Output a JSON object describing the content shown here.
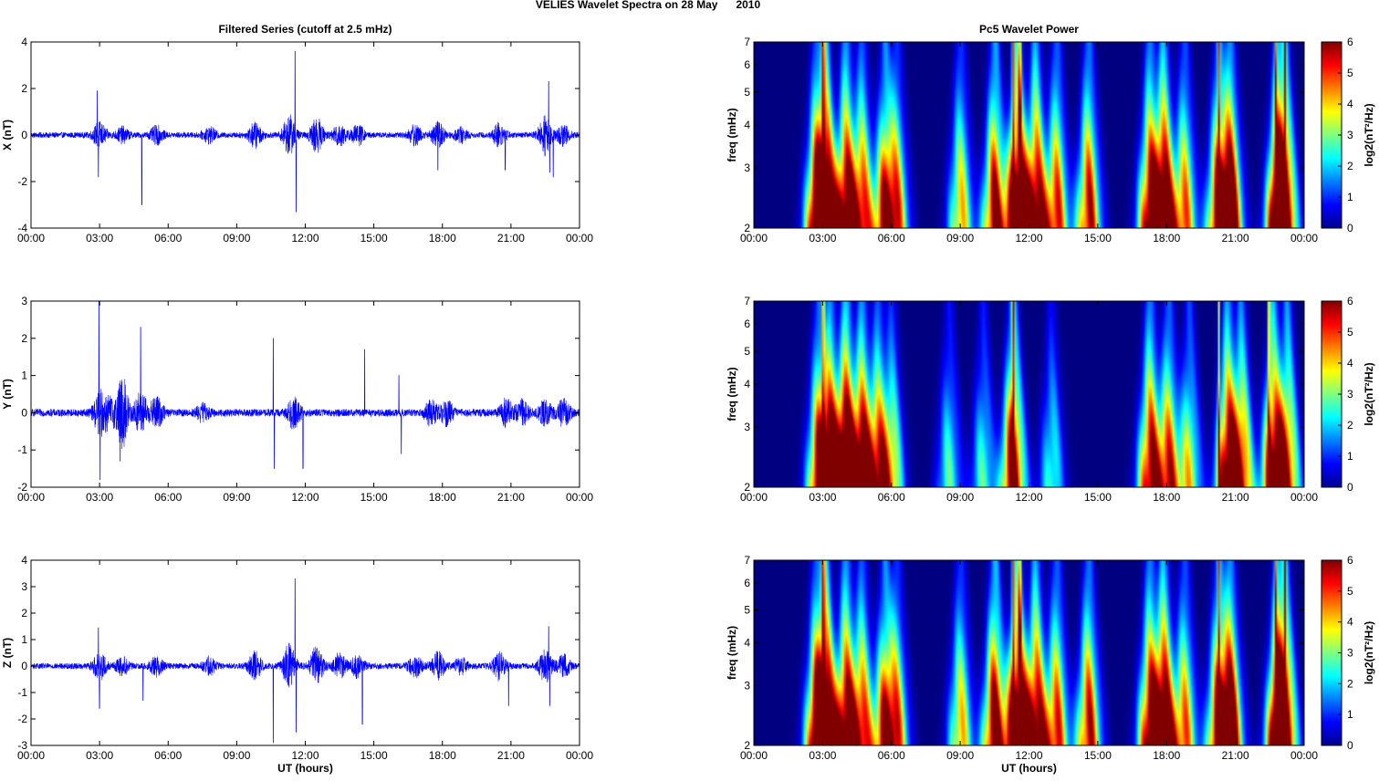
{
  "suptitle": "VELIES Wavelet Spectra on 28 May      2010",
  "time_ticks": [
    "00:00",
    "03:00",
    "06:00",
    "09:00",
    "12:00",
    "15:00",
    "18:00",
    "21:00",
    "00:00"
  ],
  "colors": {
    "series_line": "#0000ff",
    "spectrum_bg": "#00008f"
  },
  "chart_data": [
    {
      "type": "line",
      "title": "Filtered Series (cutoff at 2.5 mHz)",
      "component": "X",
      "xlabel": "",
      "ylabel": "X (nT)",
      "xlim": [
        0,
        24
      ],
      "ylim": [
        -4,
        4
      ],
      "yticks": [
        -4,
        -2,
        0,
        2,
        4
      ],
      "amp": 0.12,
      "bursts": [
        [
          3.0,
          0.5
        ],
        [
          4.0,
          0.3
        ],
        [
          5.5,
          0.35
        ],
        [
          7.8,
          0.3
        ],
        [
          9.8,
          0.5
        ],
        [
          11.3,
          0.8
        ],
        [
          12.5,
          0.7
        ],
        [
          13.5,
          0.45
        ],
        [
          14.3,
          0.4
        ],
        [
          16.8,
          0.4
        ],
        [
          17.8,
          0.5
        ],
        [
          18.8,
          0.3
        ],
        [
          20.5,
          0.5
        ],
        [
          22.5,
          0.8
        ],
        [
          23.3,
          0.4
        ]
      ],
      "spikes": [
        [
          2.9,
          1.9
        ],
        [
          2.95,
          -1.8
        ],
        [
          4.85,
          -3.0
        ],
        [
          11.55,
          3.6
        ],
        [
          11.6,
          -3.3
        ],
        [
          17.8,
          -1.5
        ],
        [
          20.75,
          -1.5
        ],
        [
          22.65,
          2.3
        ],
        [
          22.7,
          -1.6
        ],
        [
          22.85,
          -1.8
        ]
      ]
    },
    {
      "type": "heatmap",
      "title": "Pc5 Wavelet Power",
      "component": "X",
      "xlabel": "",
      "ylabel": "freq (mHz)",
      "xlim": [
        0,
        24
      ],
      "ylim": [
        2,
        7
      ],
      "ytick_values": [
        2,
        3,
        4,
        5,
        6,
        7
      ],
      "colorbar_label": "log2(nT²/Hz)",
      "colorbar_ticks": [
        0,
        1,
        2,
        3,
        4,
        5,
        6
      ],
      "blobs": [
        [
          2.7,
          1.0
        ],
        [
          3.1,
          1.5
        ],
        [
          4.0,
          1.3
        ],
        [
          4.7,
          1.0
        ],
        [
          5.7,
          1.0
        ],
        [
          6.2,
          0.8
        ],
        [
          9.0,
          0.8
        ],
        [
          10.5,
          1.2
        ],
        [
          11.5,
          1.6
        ],
        [
          12.3,
          1.3
        ],
        [
          13.2,
          1.0
        ],
        [
          14.6,
          1.1
        ],
        [
          17.3,
          1.2
        ],
        [
          17.9,
          1.4
        ],
        [
          18.8,
          0.9
        ],
        [
          20.3,
          1.1
        ],
        [
          20.8,
          1.3
        ],
        [
          22.9,
          1.3
        ],
        [
          23.2,
          1.0
        ]
      ],
      "streaks": [
        3.0,
        11.3,
        11.6,
        20.3,
        22.8,
        23.2
      ]
    },
    {
      "type": "line",
      "title": "",
      "component": "Y",
      "xlabel": "",
      "ylabel": "Y (nT)",
      "xlim": [
        0,
        24
      ],
      "ylim": [
        -2,
        3
      ],
      "yticks": [
        -2,
        -1,
        0,
        1,
        2,
        3
      ],
      "amp": 0.1,
      "bursts": [
        [
          3.0,
          0.5
        ],
        [
          3.4,
          0.35
        ],
        [
          4.0,
          0.9
        ],
        [
          4.8,
          0.55
        ],
        [
          5.5,
          0.4
        ],
        [
          7.5,
          0.2
        ],
        [
          11.5,
          0.4
        ],
        [
          17.5,
          0.3
        ],
        [
          18.2,
          0.3
        ],
        [
          20.8,
          0.35
        ],
        [
          21.5,
          0.3
        ],
        [
          22.5,
          0.3
        ],
        [
          23.3,
          0.35
        ]
      ],
      "spikes": [
        [
          2.97,
          3.0
        ],
        [
          3.02,
          -1.8
        ],
        [
          4.8,
          2.3
        ],
        [
          3.9,
          -1.3
        ],
        [
          10.6,
          2.0
        ],
        [
          10.65,
          -1.5
        ],
        [
          11.9,
          -1.5
        ],
        [
          14.6,
          1.7
        ],
        [
          16.1,
          1.0
        ],
        [
          16.2,
          -1.1
        ]
      ]
    },
    {
      "type": "heatmap",
      "title": "",
      "component": "Y",
      "xlabel": "",
      "ylabel": "freq (mHz)",
      "xlim": [
        0,
        24
      ],
      "ylim": [
        2,
        7
      ],
      "ytick_values": [
        2,
        3,
        4,
        5,
        6,
        7
      ],
      "colorbar_label": "log2(nT²/Hz)",
      "colorbar_ticks": [
        0,
        1,
        2,
        3,
        4,
        5,
        6
      ],
      "blobs": [
        [
          2.8,
          1.0
        ],
        [
          3.3,
          1.3
        ],
        [
          4.0,
          1.6
        ],
        [
          4.7,
          1.3
        ],
        [
          5.4,
          1.0
        ],
        [
          6.0,
          0.7
        ],
        [
          8.5,
          0.5
        ],
        [
          10.0,
          0.5
        ],
        [
          11.3,
          1.3
        ],
        [
          13.0,
          0.5
        ],
        [
          17.3,
          1.2
        ],
        [
          18.1,
          1.0
        ],
        [
          19.0,
          0.7
        ],
        [
          20.7,
          1.3
        ],
        [
          21.3,
          1.0
        ],
        [
          22.7,
          1.3
        ],
        [
          23.3,
          1.0
        ]
      ],
      "streaks": [
        3.0,
        11.3,
        20.3,
        22.5
      ]
    },
    {
      "type": "line",
      "title": "",
      "component": "Z",
      "xlabel": "UT (hours)",
      "ylabel": "Z (nT)",
      "xlim": [
        0,
        24
      ],
      "ylim": [
        -3,
        4
      ],
      "yticks": [
        -3,
        -2,
        -1,
        0,
        1,
        2,
        3,
        4
      ],
      "amp": 0.11,
      "bursts": [
        [
          3.0,
          0.5
        ],
        [
          4.0,
          0.3
        ],
        [
          5.5,
          0.35
        ],
        [
          7.8,
          0.3
        ],
        [
          9.8,
          0.5
        ],
        [
          11.3,
          0.8
        ],
        [
          12.5,
          0.7
        ],
        [
          13.5,
          0.45
        ],
        [
          14.3,
          0.4
        ],
        [
          16.8,
          0.4
        ],
        [
          17.8,
          0.5
        ],
        [
          18.8,
          0.3
        ],
        [
          20.5,
          0.5
        ],
        [
          22.5,
          0.6
        ],
        [
          23.3,
          0.4
        ]
      ],
      "spikes": [
        [
          2.95,
          1.45
        ],
        [
          3.0,
          -1.6
        ],
        [
          4.9,
          -1.3
        ],
        [
          10.6,
          -2.9
        ],
        [
          11.55,
          3.3
        ],
        [
          11.6,
          -2.5
        ],
        [
          14.5,
          -2.2
        ],
        [
          20.9,
          -1.5
        ],
        [
          22.65,
          1.5
        ],
        [
          22.7,
          -1.5
        ]
      ]
    },
    {
      "type": "heatmap",
      "title": "",
      "component": "Z",
      "xlabel": "UT (hours)",
      "ylabel": "freq (mHz)",
      "xlim": [
        0,
        24
      ],
      "ylim": [
        2,
        7
      ],
      "ytick_values": [
        2,
        3,
        4,
        5,
        6,
        7
      ],
      "colorbar_label": "log2(nT²/Hz)",
      "colorbar_ticks": [
        0,
        1,
        2,
        3,
        4,
        5,
        6
      ],
      "blobs": [
        [
          2.7,
          1.0
        ],
        [
          3.1,
          1.5
        ],
        [
          4.0,
          1.3
        ],
        [
          4.7,
          1.0
        ],
        [
          5.7,
          1.0
        ],
        [
          6.2,
          0.8
        ],
        [
          9.0,
          0.8
        ],
        [
          10.5,
          1.3
        ],
        [
          11.5,
          1.6
        ],
        [
          12.3,
          1.3
        ],
        [
          13.2,
          1.0
        ],
        [
          14.6,
          1.1
        ],
        [
          17.3,
          1.2
        ],
        [
          17.9,
          1.4
        ],
        [
          18.8,
          0.9
        ],
        [
          20.3,
          1.1
        ],
        [
          20.8,
          1.3
        ],
        [
          22.9,
          1.3
        ],
        [
          23.2,
          1.0
        ]
      ],
      "streaks": [
        3.0,
        11.3,
        11.6,
        20.3,
        22.8,
        23.2
      ]
    }
  ]
}
